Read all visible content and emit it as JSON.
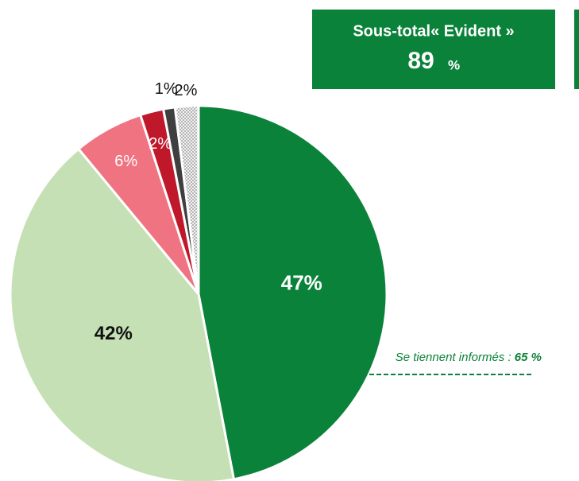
{
  "chart_data": {
    "type": "pie",
    "values": [
      47,
      42,
      6,
      2,
      1,
      2
    ],
    "value_labels": [
      "47%",
      "42%",
      "6%",
      "2%",
      "1%",
      "2%"
    ],
    "colors": [
      "#0b8239",
      "#c5e0b4",
      "#ef7380",
      "#c0182b",
      "#3f3f3f",
      "#d0d0d0"
    ],
    "hatched": [
      false,
      false,
      false,
      false,
      false,
      true
    ],
    "subtotal": {
      "title": "Sous-total« Evident »",
      "value": "89",
      "unit": "%"
    },
    "annotation": {
      "text": "Se tiennent informés : ",
      "value": "65 %"
    }
  }
}
